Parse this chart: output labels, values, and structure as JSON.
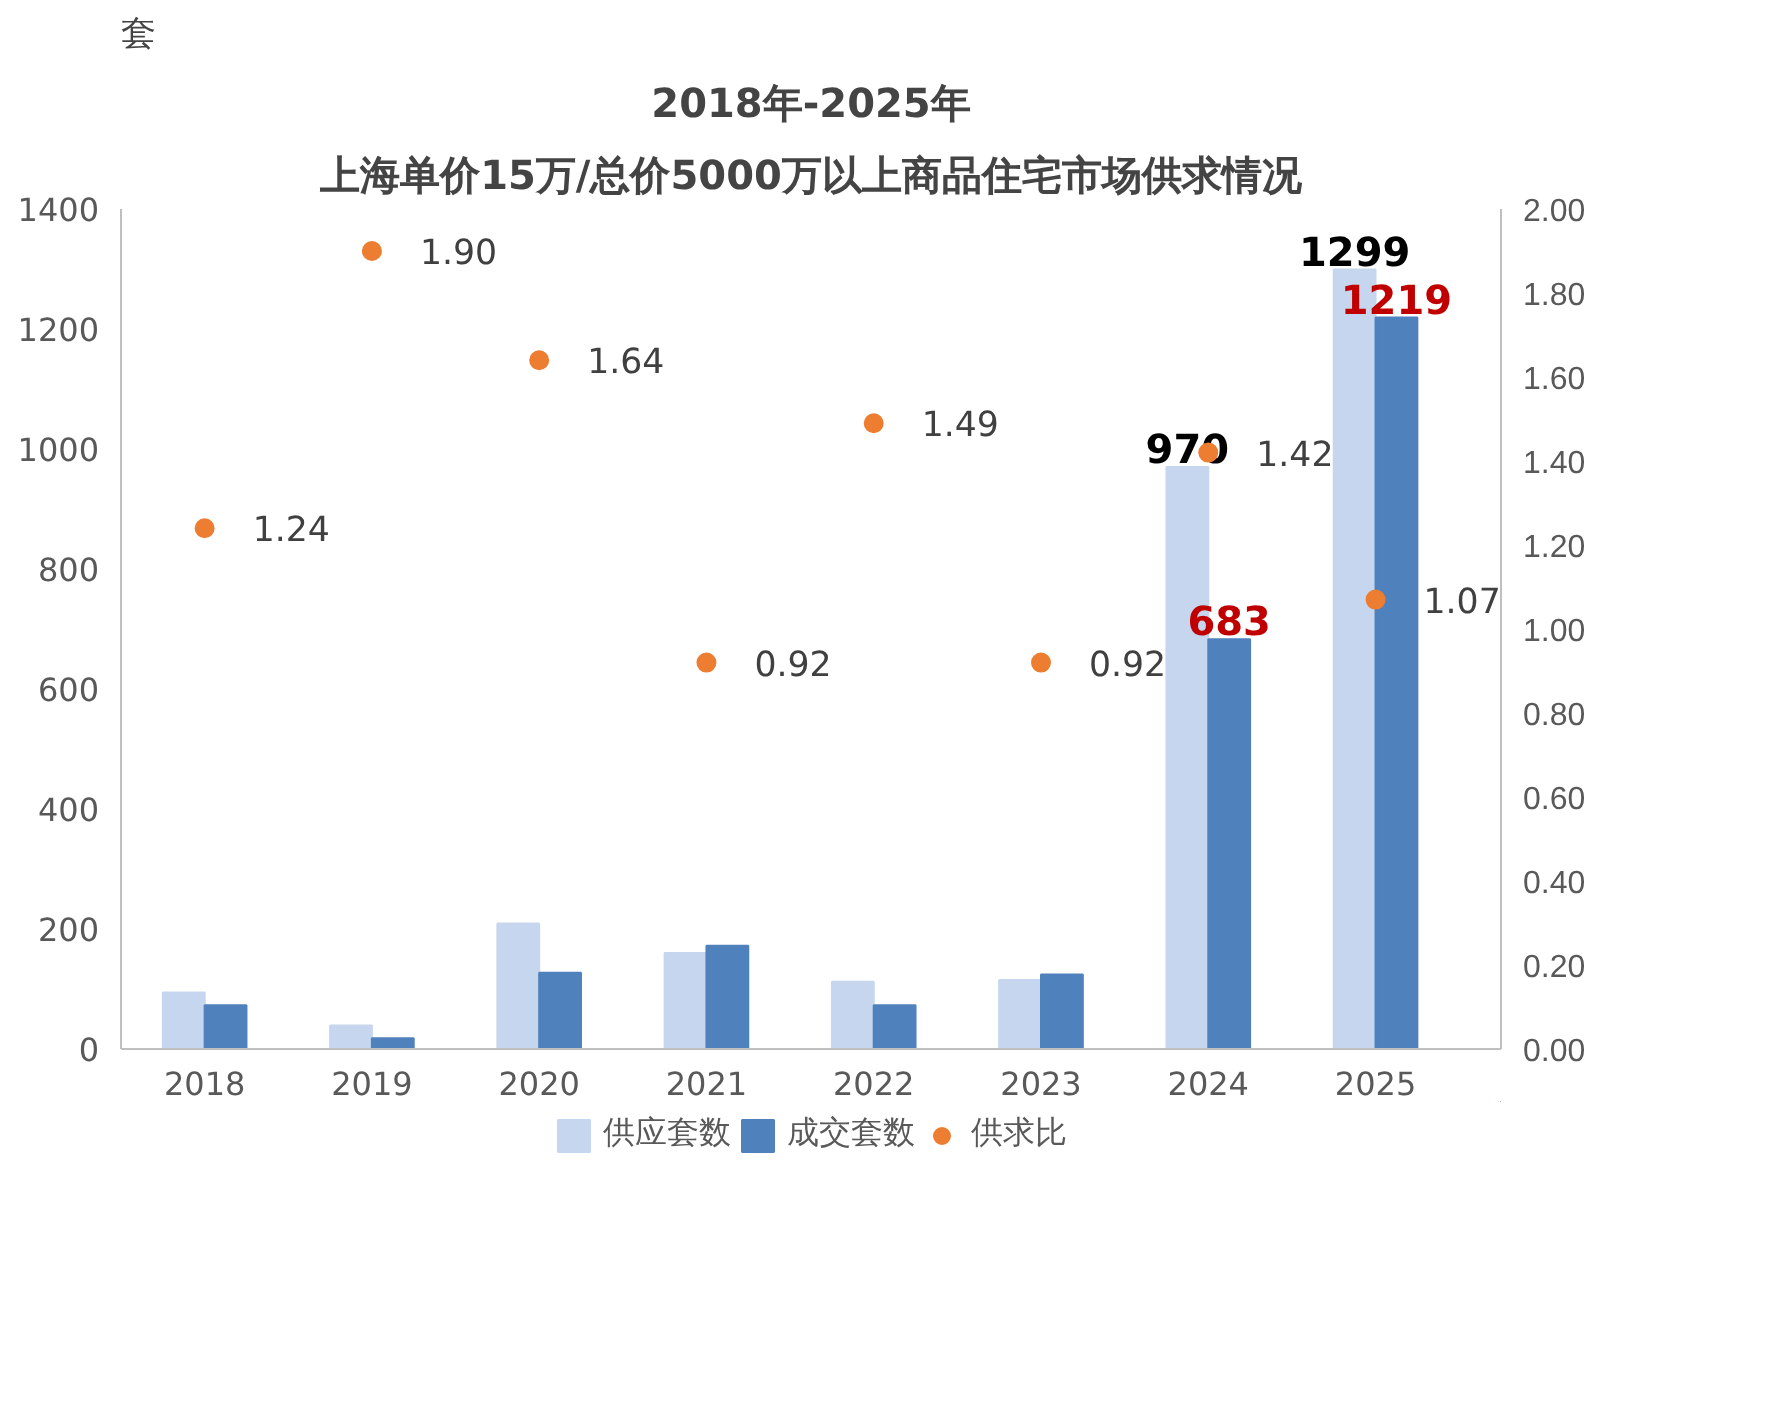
{
  "chart_data": {
    "type": "bar",
    "title": "2018年-2025年",
    "subtitle": "上海单价15万/总价5000万以上商品住宅市场供求情况",
    "ylabel": "套",
    "categories": [
      "2018",
      "2019",
      "2020",
      "2021",
      "2022",
      "2023",
      "2024",
      "2025"
    ],
    "series": [
      {
        "name": "供应套数",
        "color": "#c5d6ee",
        "values": [
          94,
          39,
          209,
          160,
          112,
          115,
          970,
          1299
        ],
        "value_labels": [
          null,
          null,
          null,
          null,
          null,
          null,
          "970",
          "1299"
        ]
      },
      {
        "name": "成交套数",
        "color": "#4f81bd",
        "values": [
          73,
          18,
          127,
          172,
          73,
          124,
          683,
          1219
        ],
        "value_labels": [
          null,
          null,
          null,
          null,
          null,
          null,
          "683",
          "1219"
        ]
      },
      {
        "name": "供求比",
        "color": "#ed7d31",
        "type": "scatter",
        "axis": "y2",
        "values": [
          1.24,
          1.9,
          1.64,
          0.92,
          1.49,
          0.92,
          1.42,
          1.07
        ],
        "value_labels": [
          "1.24",
          "1.90",
          "1.64",
          "0.92",
          "1.49",
          "0.92",
          "1.42",
          "1.07"
        ]
      }
    ],
    "ylim": [
      0,
      1400
    ],
    "yticks": [
      0,
      200,
      400,
      600,
      800,
      1000,
      1200,
      1400
    ],
    "y2lim": [
      0,
      2
    ],
    "y2ticks": [
      {
        "value": 0,
        "label": "0.00"
      },
      {
        "value": 0.2,
        "label": "0.20"
      },
      {
        "value": 0.4,
        "label": "0.40"
      },
      {
        "value": 0.6,
        "label": "0.60"
      },
      {
        "value": 0.8,
        "label": "0.80"
      },
      {
        "value": 1,
        "label": "1.00"
      },
      {
        "value": 1.2,
        "label": "1.20"
      },
      {
        "value": 1.4,
        "label": "1.40"
      },
      {
        "value": 1.6,
        "label": "1.60"
      },
      {
        "value": 1.8,
        "label": "1.80"
      },
      {
        "value": 2,
        "label": "2.00"
      }
    ],
    "grid": false,
    "legend": "bottom",
    "marker": "circle"
  }
}
